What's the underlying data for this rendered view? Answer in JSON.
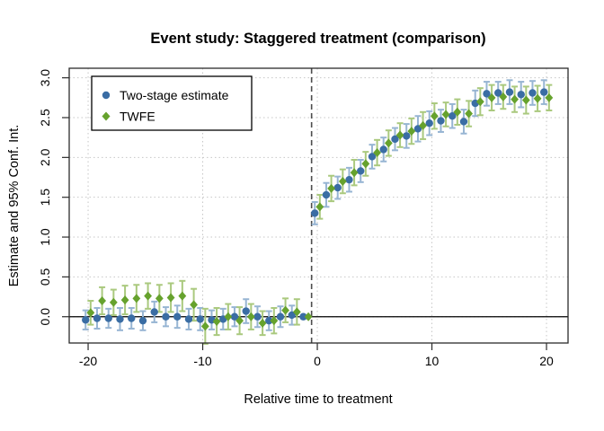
{
  "figure": {
    "title": "Event study: Staggered treatment (comparison)",
    "background": "#ffffff"
  },
  "chart_data": {
    "type": "scatter",
    "subtype": "event-study points with 95% CI error bars",
    "title": "Event study: Staggered treatment (comparison)",
    "xlabel": "Relative time to treatment",
    "ylabel": "Estimate and 95% Conf. Int.",
    "xlim": [
      -21.65,
      21.88
    ],
    "ylim": [
      -0.33,
      3.12
    ],
    "x_ticks": [
      -20,
      -10,
      0,
      10,
      20
    ],
    "x_tick_labels": [
      "-20",
      "-10",
      "0",
      "10",
      "20"
    ],
    "y_ticks": [
      0.0,
      0.5,
      1.0,
      1.5,
      2.0,
      2.5,
      3.0
    ],
    "y_tick_labels": [
      "0.0",
      "0.5",
      "1.0",
      "1.5",
      "2.0",
      "2.5",
      "3.0"
    ],
    "grid": "dotted both axes at ticks",
    "reference_hline_y": 0,
    "treatment_vline_x": -0.5,
    "legend_position": "top-left inside plot",
    "x": [
      -20,
      -19,
      -18,
      -17,
      -16,
      -15,
      -14,
      -13,
      -12,
      -11,
      -10,
      -9,
      -8,
      -7,
      -6,
      -5,
      -4,
      -3,
      -2,
      -1,
      0,
      1,
      2,
      3,
      4,
      5,
      6,
      7,
      8,
      9,
      10,
      11,
      12,
      13,
      14,
      15,
      16,
      17,
      18,
      19,
      20
    ],
    "series": [
      {
        "name": "Two-stage estimate",
        "marker": "circle",
        "color": "#3a6da4",
        "ci_color": "#97b5d3",
        "x_offset": -0.22,
        "est": [
          -0.04,
          -0.02,
          -0.02,
          -0.03,
          -0.02,
          -0.05,
          0.06,
          0,
          0,
          -0.03,
          -0.03,
          -0.04,
          -0.03,
          0,
          0.07,
          0,
          -0.05,
          0,
          0.02,
          0,
          1.3,
          1.53,
          1.62,
          1.72,
          1.83,
          2.01,
          2.1,
          2.23,
          2.27,
          2.36,
          2.43,
          2.46,
          2.52,
          2.45,
          2.68,
          2.8,
          2.81,
          2.82,
          2.79,
          2.81,
          2.82
        ],
        "ci_half_width": [
          0.12,
          0.13,
          0.12,
          0.14,
          0.13,
          0.12,
          0.13,
          0.12,
          0.14,
          0.13,
          0.14,
          0.12,
          0.13,
          0.12,
          0.15,
          0.13,
          0.12,
          0.13,
          0.12,
          0,
          0.14,
          0.15,
          0.14,
          0.15,
          0.14,
          0.15,
          0.15,
          0.14,
          0.15,
          0.16,
          0.15,
          0.14,
          0.15,
          0.15,
          0.16,
          0.15,
          0.14,
          0.15,
          0.16,
          0.15,
          0.15
        ]
      },
      {
        "name": "TWFE",
        "marker": "diamond",
        "color": "#66a22d",
        "ci_color": "#aac97e",
        "x_offset": 0.22,
        "est": [
          0.05,
          0.2,
          0.18,
          0.21,
          0.23,
          0.26,
          0.23,
          0.24,
          0.26,
          0.15,
          -0.12,
          -0.06,
          0,
          -0.05,
          0,
          -0.08,
          -0.05,
          0.08,
          0.06,
          0,
          1.38,
          1.61,
          1.7,
          1.81,
          1.92,
          2.06,
          2.18,
          2.28,
          2.33,
          2.4,
          2.52,
          2.54,
          2.57,
          2.55,
          2.7,
          2.75,
          2.76,
          2.73,
          2.72,
          2.74,
          2.75
        ],
        "ci_half_width": [
          0.15,
          0.17,
          0.16,
          0.18,
          0.17,
          0.16,
          0.17,
          0.18,
          0.19,
          0.2,
          0.22,
          0.17,
          0.16,
          0.17,
          0.16,
          0.15,
          0.16,
          0.15,
          0.16,
          0,
          0.15,
          0.16,
          0.15,
          0.16,
          0.15,
          0.16,
          0.16,
          0.15,
          0.16,
          0.17,
          0.16,
          0.15,
          0.16,
          0.16,
          0.17,
          0.16,
          0.15,
          0.16,
          0.17,
          0.16,
          0.16
        ]
      }
    ],
    "colors": {
      "grid": "#c6c6c6",
      "box_border": "#2b2b2b",
      "zero_line": "#000000",
      "treatment_line": "#4d4d4d",
      "background": "#ffffff"
    }
  }
}
